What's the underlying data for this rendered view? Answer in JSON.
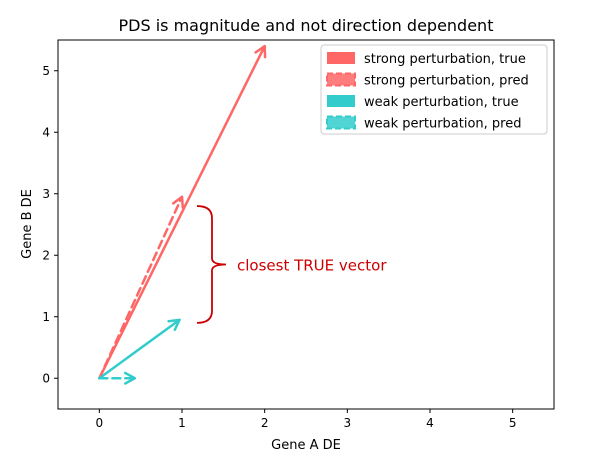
{
  "chart_data": {
    "type": "quiver",
    "title": "PDS is magnitude and not direction dependent",
    "xlabel": "Gene A DE",
    "ylabel": "Gene B DE",
    "xlim": [
      -0.5,
      5.5
    ],
    "ylim": [
      -0.5,
      5.5
    ],
    "xticks": [
      0,
      1,
      2,
      3,
      4,
      5
    ],
    "yticks": [
      0,
      1,
      2,
      3,
      4,
      5
    ],
    "grid": false,
    "legend_position": "top-right",
    "series": [
      {
        "name": "strong perturbation, true",
        "color": "#ff6666",
        "style": "solid",
        "vectors": [
          {
            "x0": 0,
            "y0": 0,
            "x1": 2.0,
            "y1": 5.4
          }
        ]
      },
      {
        "name": "strong perturbation, pred",
        "color": "#ff6666",
        "style": "dashed",
        "vectors": [
          {
            "x0": 0,
            "y0": 0,
            "x1": 1.0,
            "y1": 2.95
          }
        ]
      },
      {
        "name": "weak perturbation, true",
        "color": "#33cccc",
        "style": "solid",
        "vectors": [
          {
            "x0": 0,
            "y0": 0,
            "x1": 0.97,
            "y1": 0.95
          }
        ]
      },
      {
        "name": "weak perturbation, pred",
        "color": "#33cccc",
        "style": "dashed",
        "vectors": [
          {
            "x0": 0,
            "y0": 0,
            "x1": 0.43,
            "y1": 0.0
          }
        ]
      }
    ],
    "annotation": {
      "text": "closest TRUE vector",
      "color": "#cc0000",
      "bracket_y": [
        0.9,
        2.8
      ]
    }
  }
}
